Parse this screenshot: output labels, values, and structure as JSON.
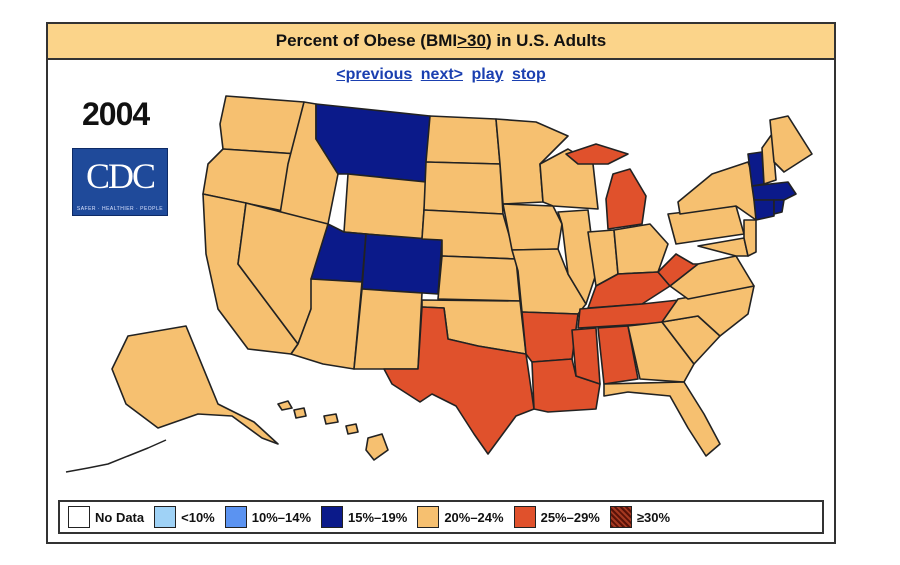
{
  "header": {
    "title_prefix": "Percent of Obese (BMI ",
    "title_ge": ">30",
    "title_suffix": ") in U.S. Adults"
  },
  "nav": {
    "previous": "<previous",
    "next": "next>",
    "play": "play",
    "stop": "stop"
  },
  "year": "2004",
  "logo": {
    "text": "CDC",
    "tagline": "SAFER · HEALTHIER · PEOPLE"
  },
  "legend": [
    {
      "label": "No Data",
      "color": "#ffffff"
    },
    {
      "label": "<10%",
      "color": "#9fd2f6"
    },
    {
      "label": "10%–14%",
      "color": "#5b93f1"
    },
    {
      "label": "15%–19%",
      "color": "#0b1a8a"
    },
    {
      "label": "20%–24%",
      "color": "#f6c070"
    },
    {
      "label": "25%–29%",
      "color": "#e0512c"
    },
    {
      "label": "≥30%",
      "color": "#7a1f12"
    }
  ],
  "colors": {
    "c15_19": "#0b1a8a",
    "c20_24": "#f6c070",
    "c25_29": "#e0512c",
    "border": "#222222"
  },
  "states_15_19": [
    "Montana",
    "Utah",
    "Colorado",
    "Vermont",
    "Massachusetts",
    "Connecticut"
  ],
  "states_25_29": [
    "Texas",
    "Arkansas",
    "Louisiana",
    "Mississippi",
    "Alabama",
    "Tennessee",
    "Kentucky",
    "West Virginia",
    "Michigan"
  ],
  "states_20_24": "all other states"
}
